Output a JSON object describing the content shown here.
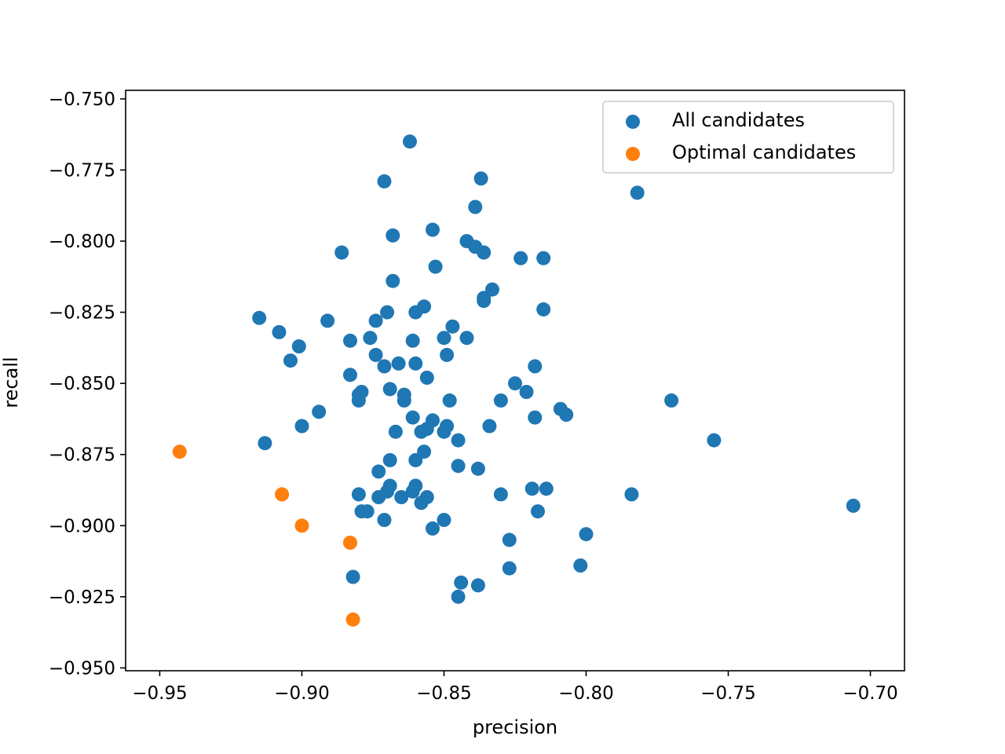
{
  "chart_data": {
    "type": "scatter",
    "title": "",
    "xlabel": "precision",
    "ylabel": "recall",
    "xlim": [
      -0.962,
      -0.688
    ],
    "ylim": [
      -0.951,
      -0.747
    ],
    "xticks": [
      -0.95,
      -0.9,
      -0.85,
      -0.8,
      -0.75,
      -0.7
    ],
    "xtick_labels": [
      "−0.95",
      "−0.90",
      "−0.85",
      "−0.80",
      "−0.75",
      "−0.70"
    ],
    "yticks": [
      -0.95,
      -0.925,
      -0.9,
      -0.875,
      -0.85,
      -0.825,
      -0.8,
      -0.775,
      -0.75
    ],
    "ytick_labels": [
      "−0.950",
      "−0.925",
      "−0.900",
      "−0.875",
      "−0.850",
      "−0.825",
      "−0.800",
      "−0.775",
      "−0.750"
    ],
    "grid": false,
    "legend_position": "top-right",
    "series": [
      {
        "name": "All candidates",
        "color": "#1f77b4",
        "points": [
          [
            -0.862,
            -0.765
          ],
          [
            -0.837,
            -0.778
          ],
          [
            -0.871,
            -0.779
          ],
          [
            -0.782,
            -0.783
          ],
          [
            -0.839,
            -0.788
          ],
          [
            -0.854,
            -0.796
          ],
          [
            -0.868,
            -0.798
          ],
          [
            -0.842,
            -0.8
          ],
          [
            -0.839,
            -0.802
          ],
          [
            -0.836,
            -0.804
          ],
          [
            -0.886,
            -0.804
          ],
          [
            -0.823,
            -0.806
          ],
          [
            -0.815,
            -0.806
          ],
          [
            -0.853,
            -0.809
          ],
          [
            -0.868,
            -0.814
          ],
          [
            -0.833,
            -0.817
          ],
          [
            -0.836,
            -0.82
          ],
          [
            -0.836,
            -0.821
          ],
          [
            -0.857,
            -0.823
          ],
          [
            -0.815,
            -0.824
          ],
          [
            -0.86,
            -0.825
          ],
          [
            -0.87,
            -0.825
          ],
          [
            -0.915,
            -0.827
          ],
          [
            -0.874,
            -0.828
          ],
          [
            -0.891,
            -0.828
          ],
          [
            -0.847,
            -0.83
          ],
          [
            -0.908,
            -0.832
          ],
          [
            -0.85,
            -0.834
          ],
          [
            -0.842,
            -0.834
          ],
          [
            -0.876,
            -0.834
          ],
          [
            -0.883,
            -0.835
          ],
          [
            -0.861,
            -0.835
          ],
          [
            -0.901,
            -0.837
          ],
          [
            -0.849,
            -0.84
          ],
          [
            -0.874,
            -0.84
          ],
          [
            -0.904,
            -0.842
          ],
          [
            -0.866,
            -0.843
          ],
          [
            -0.86,
            -0.843
          ],
          [
            -0.871,
            -0.844
          ],
          [
            -0.818,
            -0.844
          ],
          [
            -0.883,
            -0.847
          ],
          [
            -0.856,
            -0.848
          ],
          [
            -0.825,
            -0.85
          ],
          [
            -0.869,
            -0.852
          ],
          [
            -0.821,
            -0.853
          ],
          [
            -0.879,
            -0.853
          ],
          [
            -0.864,
            -0.854
          ],
          [
            -0.88,
            -0.854
          ],
          [
            -0.77,
            -0.856
          ],
          [
            -0.83,
            -0.856
          ],
          [
            -0.848,
            -0.856
          ],
          [
            -0.864,
            -0.856
          ],
          [
            -0.88,
            -0.856
          ],
          [
            -0.809,
            -0.859
          ],
          [
            -0.807,
            -0.861
          ],
          [
            -0.894,
            -0.86
          ],
          [
            -0.818,
            -0.862
          ],
          [
            -0.861,
            -0.862
          ],
          [
            -0.854,
            -0.863
          ],
          [
            -0.9,
            -0.865
          ],
          [
            -0.834,
            -0.865
          ],
          [
            -0.849,
            -0.865
          ],
          [
            -0.856,
            -0.866
          ],
          [
            -0.858,
            -0.867
          ],
          [
            -0.85,
            -0.867
          ],
          [
            -0.867,
            -0.867
          ],
          [
            -0.755,
            -0.87
          ],
          [
            -0.845,
            -0.87
          ],
          [
            -0.913,
            -0.871
          ],
          [
            -0.857,
            -0.874
          ],
          [
            -0.869,
            -0.877
          ],
          [
            -0.86,
            -0.877
          ],
          [
            -0.845,
            -0.879
          ],
          [
            -0.838,
            -0.88
          ],
          [
            -0.873,
            -0.881
          ],
          [
            -0.819,
            -0.887
          ],
          [
            -0.814,
            -0.887
          ],
          [
            -0.869,
            -0.886
          ],
          [
            -0.86,
            -0.886
          ],
          [
            -0.87,
            -0.888
          ],
          [
            -0.861,
            -0.888
          ],
          [
            -0.784,
            -0.889
          ],
          [
            -0.83,
            -0.889
          ],
          [
            -0.88,
            -0.889
          ],
          [
            -0.873,
            -0.89
          ],
          [
            -0.865,
            -0.89
          ],
          [
            -0.856,
            -0.89
          ],
          [
            -0.858,
            -0.892
          ],
          [
            -0.706,
            -0.893
          ],
          [
            -0.879,
            -0.895
          ],
          [
            -0.877,
            -0.895
          ],
          [
            -0.817,
            -0.895
          ],
          [
            -0.871,
            -0.898
          ],
          [
            -0.85,
            -0.898
          ],
          [
            -0.854,
            -0.901
          ],
          [
            -0.8,
            -0.903
          ],
          [
            -0.827,
            -0.905
          ],
          [
            -0.802,
            -0.914
          ],
          [
            -0.827,
            -0.915
          ],
          [
            -0.882,
            -0.918
          ],
          [
            -0.844,
            -0.92
          ],
          [
            -0.838,
            -0.921
          ],
          [
            -0.845,
            -0.925
          ]
        ]
      },
      {
        "name": "Optimal candidates",
        "color": "#ff7f0e",
        "points": [
          [
            -0.943,
            -0.874
          ],
          [
            -0.907,
            -0.889
          ],
          [
            -0.9,
            -0.9
          ],
          [
            -0.883,
            -0.906
          ],
          [
            -0.882,
            -0.933
          ]
        ]
      }
    ]
  }
}
